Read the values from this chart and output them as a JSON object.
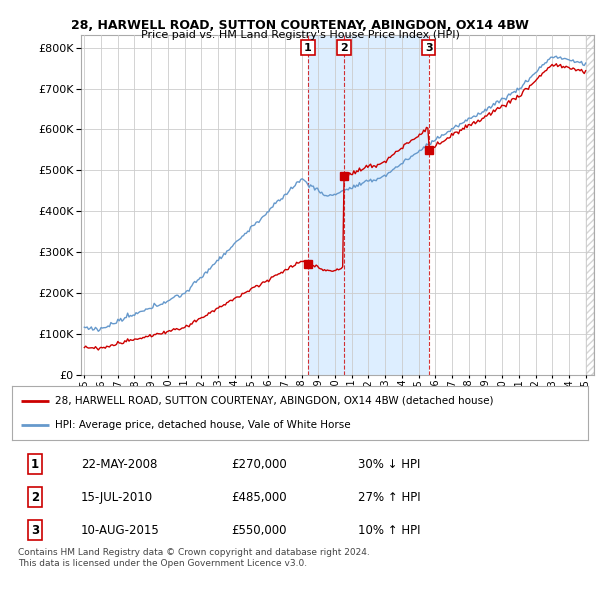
{
  "title1": "28, HARWELL ROAD, SUTTON COURTENAY, ABINGDON, OX14 4BW",
  "title2": "Price paid vs. HM Land Registry's House Price Index (HPI)",
  "legend_line1": "28, HARWELL ROAD, SUTTON COURTENAY, ABINGDON, OX14 4BW (detached house)",
  "legend_line2": "HPI: Average price, detached house, Vale of White Horse",
  "transactions": [
    {
      "num": 1,
      "date": "22-MAY-2008",
      "price": 270000,
      "pct": "30%",
      "dir": "↓",
      "x": 2008.38
    },
    {
      "num": 2,
      "date": "15-JUL-2010",
      "price": 485000,
      "pct": "27%",
      "dir": "↑",
      "x": 2010.54
    },
    {
      "num": 3,
      "date": "10-AUG-2015",
      "price": 550000,
      "pct": "10%",
      "dir": "↑",
      "x": 2015.62
    }
  ],
  "footnote1": "Contains HM Land Registry data © Crown copyright and database right 2024.",
  "footnote2": "This data is licensed under the Open Government Licence v3.0.",
  "red_color": "#cc0000",
  "blue_color": "#6699cc",
  "shade_color": "#ddeeff",
  "background": "#ffffff",
  "grid_color": "#cccccc",
  "ylim": [
    0,
    830000
  ],
  "yticks": [
    0,
    100000,
    200000,
    300000,
    400000,
    500000,
    600000,
    700000,
    800000
  ],
  "xmin": 1994.8,
  "xmax": 2025.5
}
